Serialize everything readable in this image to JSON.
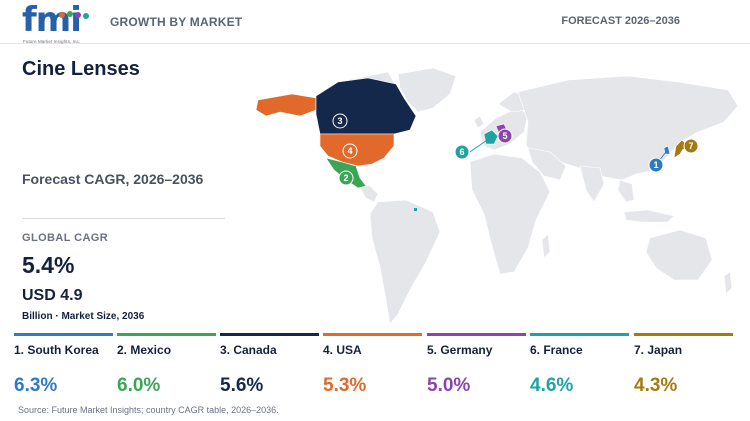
{
  "brand": {
    "logo_text": "fmi",
    "tagline": "Future Market Insights, Inc."
  },
  "header": {
    "left": "GROWTH BY MARKET",
    "right": "FORECAST 2026–2036"
  },
  "title": "Cine Lenses",
  "subtitle": "Forecast CAGR, 2026–2036",
  "global": {
    "label": "GLOBAL CAGR",
    "value": "5.4%",
    "market_size": "USD 4.9",
    "market_size_note": "Billion · Market Size, 2036"
  },
  "countries": [
    {
      "rank": "1",
      "name": "1. South Korea",
      "cagr": "6.3%",
      "color": "#2f7bbf"
    },
    {
      "rank": "2",
      "name": "2. Mexico",
      "cagr": "6.0%",
      "color": "#3aa655"
    },
    {
      "rank": "3",
      "name": "3. Canada",
      "cagr": "5.6%",
      "color": "#14284b"
    },
    {
      "rank": "4",
      "name": "4. USA",
      "cagr": "5.3%",
      "color": "#e0692b"
    },
    {
      "rank": "5",
      "name": "5. Germany",
      "cagr": "5.0%",
      "color": "#8e44ad"
    },
    {
      "rank": "6",
      "name": "6. France",
      "cagr": "4.6%",
      "color": "#1fa2a6"
    },
    {
      "rank": "7",
      "name": "7. Japan",
      "cagr": "4.3%",
      "color": "#a47a12"
    }
  ],
  "map": {
    "land_color": "#e4e6e9"
  },
  "source": "Source: Future Market Insights; country CAGR table, 2026–2036."
}
